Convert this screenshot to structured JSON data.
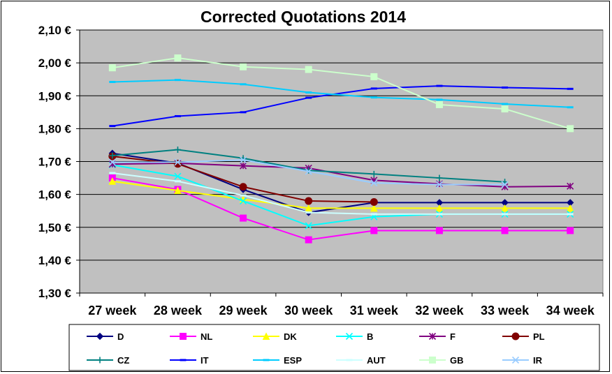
{
  "chart_data": {
    "type": "line",
    "title": "Corrected Quotations 2014",
    "categories": [
      "27 week",
      "28 week",
      "29 week",
      "30 week",
      "31 week",
      "32 week",
      "33 week",
      "34 week"
    ],
    "ylim": [
      1.3,
      2.1
    ],
    "yticks": [
      1.3,
      1.4,
      1.5,
      1.6,
      1.7,
      1.8,
      1.9,
      2.0,
      2.1
    ],
    "ytick_labels": [
      "1,30 €",
      "1,40 €",
      "1,50 €",
      "1,60 €",
      "1,70 €",
      "1,80 €",
      "1,90 €",
      "2,00 €",
      "2,10 €"
    ],
    "grid": true,
    "legend_position": "bottom",
    "plot_background": "#c0c0c0",
    "series": [
      {
        "name": "D",
        "color": "#000080",
        "marker": "diamond",
        "values": [
          1.725,
          1.695,
          1.615,
          1.545,
          1.575,
          1.575,
          1.575,
          1.575
        ]
      },
      {
        "name": "NL",
        "color": "#ff00ff",
        "marker": "square",
        "values": [
          1.65,
          1.615,
          1.528,
          1.462,
          1.49,
          1.49,
          1.49,
          1.49
        ]
      },
      {
        "name": "DK",
        "color": "#ffff00",
        "marker": "triangle",
        "values": [
          1.64,
          1.612,
          1.585,
          1.558,
          1.558,
          1.558,
          1.558,
          1.558
        ]
      },
      {
        "name": "B",
        "color": "#00ffff",
        "marker": "x",
        "values": [
          1.69,
          1.655,
          1.58,
          1.505,
          1.532,
          1.54,
          1.54,
          1.54
        ]
      },
      {
        "name": "F",
        "color": "#800080",
        "marker": "asterisk",
        "values": [
          1.692,
          1.695,
          1.687,
          1.68,
          1.643,
          1.632,
          1.623,
          1.625
        ]
      },
      {
        "name": "PL",
        "color": "#800000",
        "marker": "circle",
        "values": [
          1.716,
          1.693,
          1.623,
          1.58,
          1.577,
          null,
          null,
          null
        ]
      },
      {
        "name": "CZ",
        "color": "#008080",
        "marker": "plus",
        "values": [
          1.718,
          1.736,
          1.71,
          1.673,
          1.662,
          1.65,
          1.638,
          null
        ]
      },
      {
        "name": "IT",
        "color": "#0000ff",
        "marker": "dash",
        "values": [
          1.808,
          1.838,
          1.85,
          1.894,
          1.922,
          1.93,
          1.925,
          1.921
        ]
      },
      {
        "name": "ESP",
        "color": "#00ccff",
        "marker": "dash",
        "values": [
          1.942,
          1.948,
          1.935,
          1.91,
          1.895,
          1.888,
          1.875,
          1.865
        ]
      },
      {
        "name": "AUT",
        "color": "#ccffff",
        "marker": "dash",
        "values": [
          1.665,
          1.64,
          1.597,
          1.545,
          1.54,
          1.54,
          1.54,
          1.54
        ]
      },
      {
        "name": "GB",
        "color": "#ccffcc",
        "marker": "square",
        "values": [
          1.985,
          2.015,
          1.988,
          1.98,
          1.958,
          1.873,
          1.86,
          1.8
        ]
      },
      {
        "name": "IR",
        "color": "#99ccff",
        "marker": "x",
        "values": [
          1.698,
          1.698,
          1.705,
          1.67,
          1.635,
          1.63,
          1.63,
          null
        ]
      }
    ]
  }
}
